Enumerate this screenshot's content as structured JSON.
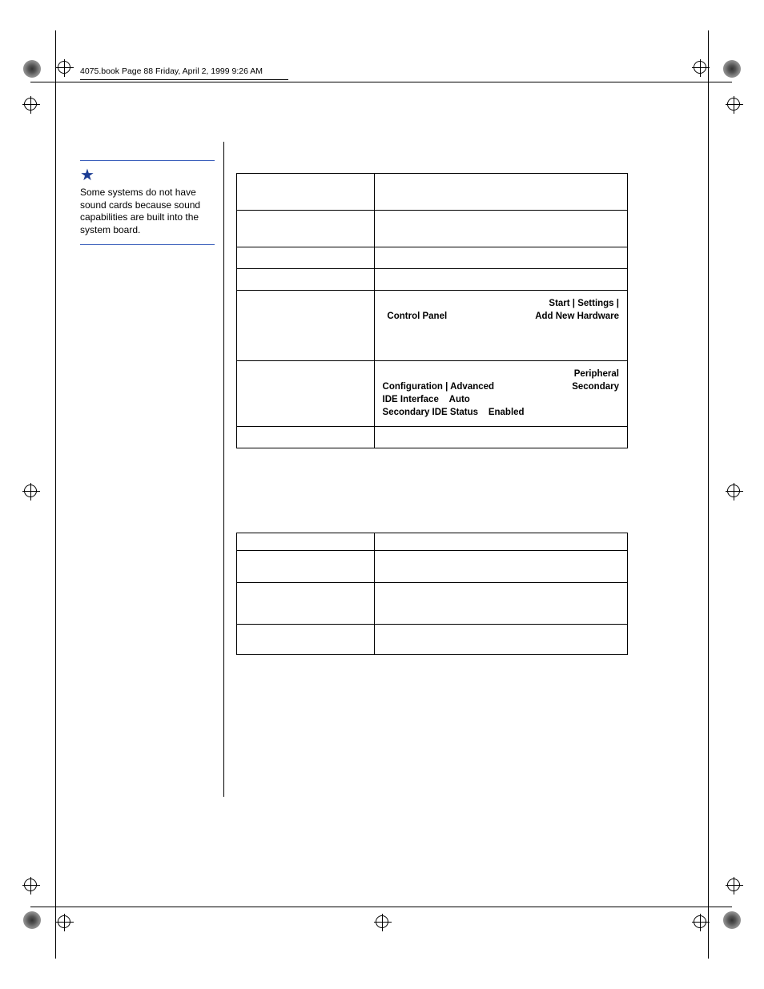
{
  "header": {
    "text": "4075.book  Page 88  Friday, April 2, 1999  9:26 AM"
  },
  "margin_note": {
    "text": "Some systems do not have sound cards because sound capabilities are built into the system board."
  },
  "table1": {
    "rows": [
      {
        "c1": "",
        "c2_plain": "",
        "c2_bold": []
      },
      {
        "c1": "",
        "c2_plain": "",
        "c2_bold": []
      },
      {
        "c1": "",
        "c2_plain": "",
        "c2_bold": []
      },
      {
        "c1": "",
        "c2_plain": "",
        "c2_bold": []
      },
      {
        "c1": "",
        "c2_segments": [
          {
            "t": "",
            "b": false
          },
          {
            "t": "Start | Settings | Control Panel",
            "b": true
          },
          {
            "t": "",
            "b": false
          },
          {
            "t": "Add New Hardware",
            "b": true
          },
          {
            "t": "",
            "b": false
          }
        ]
      },
      {
        "c1": "",
        "c2_segments": [
          {
            "t": "",
            "b": false
          },
          {
            "t": "Peripheral Configuration | Advanced",
            "b": true
          },
          {
            "t": "",
            "b": false
          },
          {
            "t": "Secondary IDE Interface",
            "b": true
          },
          {
            "t": "",
            "b": false
          },
          {
            "t": "Auto",
            "b": true
          },
          {
            "t": "",
            "b": false
          },
          {
            "t": "Secondary IDE Status",
            "b": true
          },
          {
            "t": "",
            "b": false
          },
          {
            "t": "Enabled",
            "b": true
          },
          {
            "t": "",
            "b": false
          }
        ]
      },
      {
        "c1": "",
        "c2_plain": "",
        "c2_bold": []
      }
    ]
  },
  "table2": {
    "rows": [
      {
        "c1": "",
        "c2": ""
      },
      {
        "c1": "",
        "c2": ""
      },
      {
        "c1": "",
        "c2": ""
      },
      {
        "c1": "",
        "c2": ""
      }
    ]
  },
  "row_heights_t1": [
    46,
    46,
    27,
    27,
    88,
    82,
    27
  ],
  "row_heights_t2": [
    22,
    40,
    52,
    38
  ]
}
